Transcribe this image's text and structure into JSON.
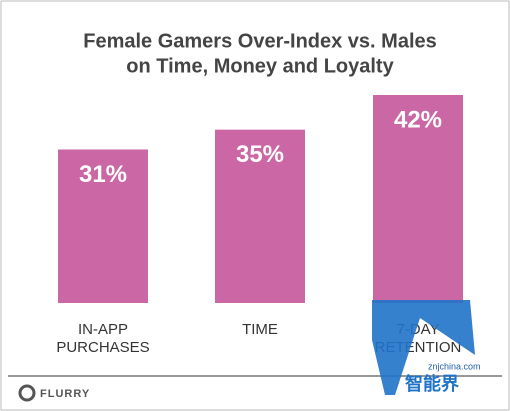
{
  "chart_data": {
    "type": "bar",
    "title": [
      "Female Gamers Over-Index vs. Males",
      "on Time, Money and Loyalty"
    ],
    "categories": [
      "IN-APP PURCHASES",
      "TIME",
      "7-DAY RETENTION"
    ],
    "values": [
      31,
      35,
      42
    ],
    "value_labels": [
      "31%",
      "35%",
      "42%"
    ],
    "color": "#cb67a4"
  },
  "logo": "FLURRY",
  "watermark": {
    "url": "znjchina.com",
    "text": "智能界"
  }
}
